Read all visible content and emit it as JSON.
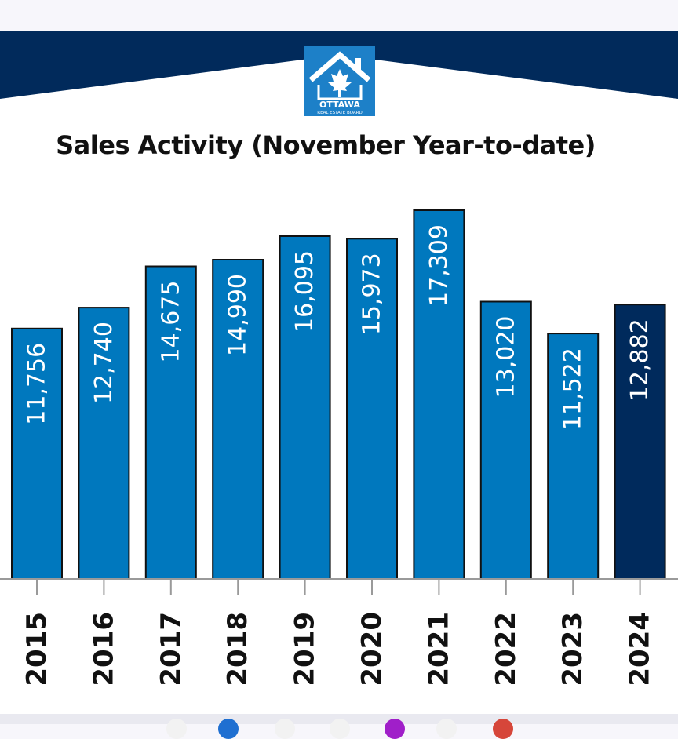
{
  "logo": {
    "text_top": "OTTAWA",
    "text_bottom": "REAL ESTATE BOARD",
    "icon": "house-maple-leaf-icon"
  },
  "colors": {
    "banner": "#012a5b",
    "bar": "#0078be",
    "bar_highlight": "#002a5c",
    "logo_bg": "#1d80c8"
  },
  "chart_data": {
    "type": "bar",
    "title": "Sales Activity (November Year-to-date)",
    "categories": [
      "2015",
      "2016",
      "2017",
      "2018",
      "2019",
      "2020",
      "2021",
      "2022",
      "2023",
      "2024"
    ],
    "values": [
      11756,
      12740,
      14675,
      14990,
      16095,
      15973,
      17309,
      13020,
      11522,
      12882
    ],
    "value_labels": [
      "11,756",
      "12,740",
      "14,675",
      "14,990",
      "16,095",
      "15,973",
      "17,309",
      "13,020",
      "11,522",
      "12,882"
    ],
    "highlight_category": "2024",
    "ylim": [
      0,
      17309
    ],
    "grid": false,
    "legend": "none"
  }
}
